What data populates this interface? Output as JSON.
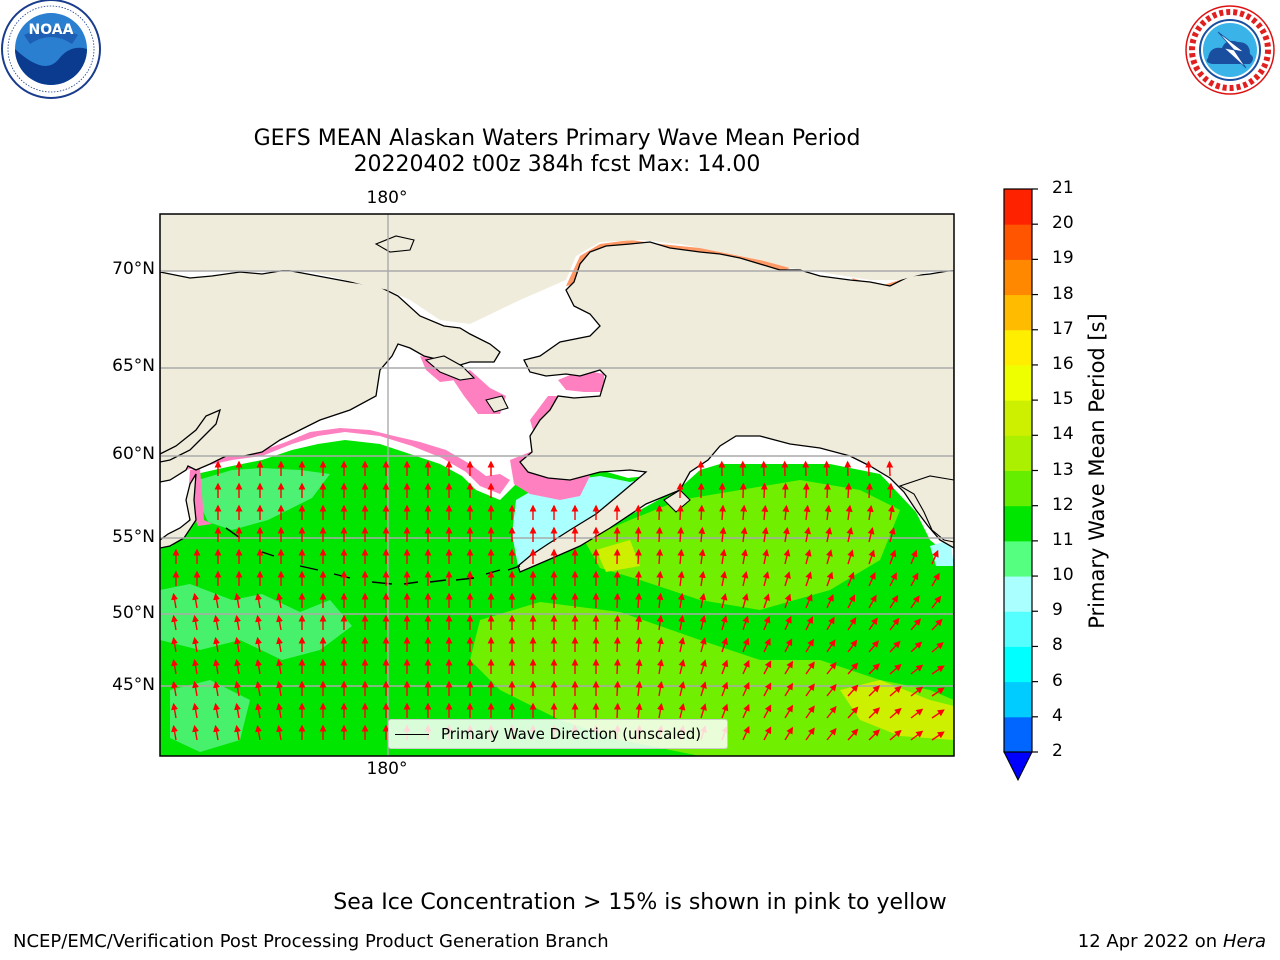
{
  "title": {
    "line1": "GEFS MEAN Alaskan Waters Primary Wave Mean Period",
    "line2": "20220402 t00z 384h fcst   Max: 14.00"
  },
  "logos": {
    "left": {
      "name": "noaa-logo",
      "text": "NOAA",
      "ring_text": "NATIONAL OCEANIC AND ATMOSPHERIC ADMINISTRATION · U.S. DEPARTMENT OF COMMERCE"
    },
    "right": {
      "name": "nws-logo",
      "ring_text": "NATIONAL WEATHER SERVICE"
    }
  },
  "map": {
    "lat_labels": [
      "70°N",
      "65°N",
      "60°N",
      "55°N",
      "50°N",
      "45°N"
    ],
    "lon_label_top": "180°",
    "lon_label_bottom": "180°",
    "legend_label": "Primary Wave Direction (unscaled)",
    "colors": {
      "land": "#efecdc",
      "water_main": "#00e600",
      "water_low": "#55f27f",
      "water_high": "#7df000",
      "arrow": "#ff0000",
      "ice_pink": "#ff80c0"
    }
  },
  "colorbar": {
    "label": "Primary Wave Mean Period [s]",
    "ticks": [
      "2",
      "4",
      "6",
      "8",
      "9",
      "10",
      "11",
      "12",
      "13",
      "14",
      "15",
      "16",
      "17",
      "18",
      "19",
      "20",
      "21"
    ],
    "colors": [
      "#0066ff",
      "#00ccff",
      "#00ffff",
      "#55ffff",
      "#aaffff",
      "#55ff80",
      "#00e600",
      "#66ee00",
      "#aaf000",
      "#ccf000",
      "#eeff00",
      "#ffee00",
      "#ffbb00",
      "#ff8800",
      "#ff5500",
      "#ff2200"
    ],
    "under_color": "#0000ff"
  },
  "footer": {
    "note": "Sea Ice Concentration > 15% is shown in pink to yellow",
    "left": "NCEP/EMC/Verification Post Processing Product Generation Branch",
    "right_date": "12 Apr 2022 on ",
    "right_host": "Hera"
  }
}
